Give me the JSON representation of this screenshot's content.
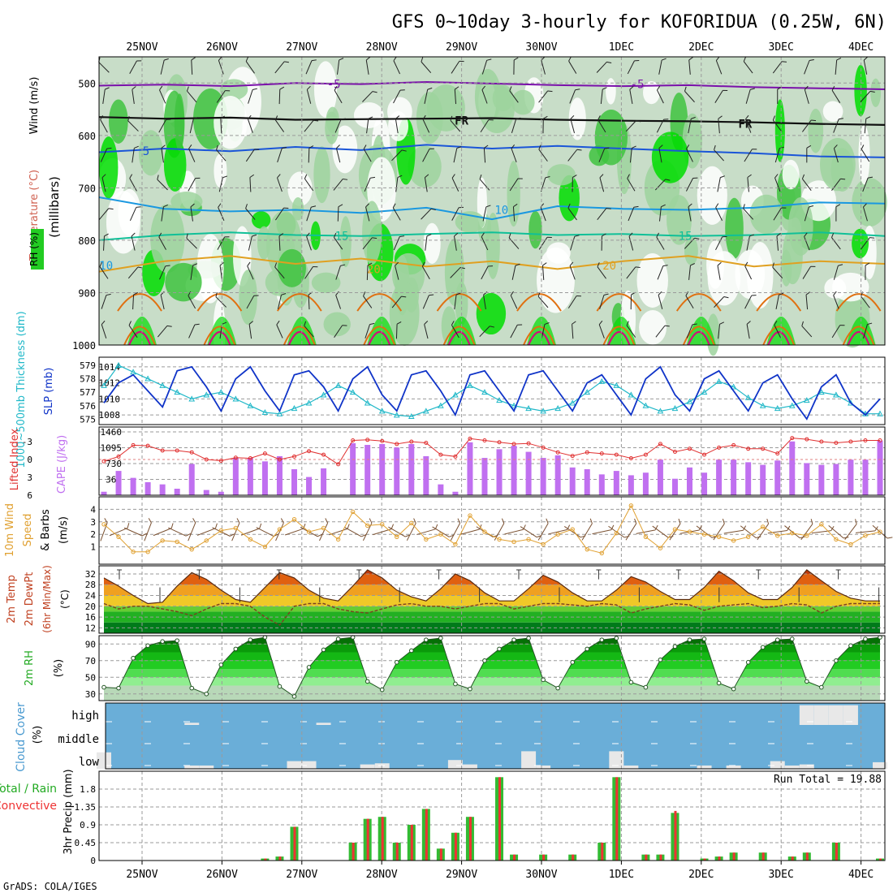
{
  "header": {
    "title": "GFS 0~10day 3-hourly for KOFORIDUA (0.25W, 6N)",
    "footer": "GrADS: COLA/IGES"
  },
  "dates": [
    "25NOV",
    "26NOV",
    "27NOV",
    "28NOV",
    "29NOV",
    "30NOV",
    "1DEC",
    "2DEC",
    "3DEC",
    "4DEC"
  ],
  "colors": {
    "rh_light": "#c8ddc8",
    "rh_mid": "#9ed39e",
    "rh_high": "#3fc33f",
    "rh_max": "#00dd00",
    "temp_m5": "#7a10aa",
    "temp_fr": "#111111",
    "temp_5": "#1a55d8",
    "temp_10": "#1a98e0",
    "temp_15": "#10c098",
    "temp_20": "#e0a020",
    "temp_25": "#e07010",
    "temp_30": "#d0107a",
    "slp": "#1034c8",
    "thick": "#20b8c8",
    "cape": "#c070f0",
    "lifted": "#e03030",
    "wind_speed": "#e0a030",
    "barb": "#7a5030",
    "cloud_bg": "#6aaed8",
    "cloud_fill": "#e8e8e8",
    "precip_total": "#33bb33",
    "precip_conv": "#ee3333",
    "grid": "#9a9a9a"
  },
  "chart_data": [
    {
      "id": "upper_air",
      "type": "heatmap",
      "ylabel_parts": [
        "RH (%)",
        "Temperature (°C)",
        "Wind (m/s)",
        "(millibars)"
      ],
      "y_ticks": [
        "500",
        "600",
        "700",
        "800",
        "900",
        "1000"
      ],
      "ylim": [
        1000,
        450
      ],
      "contours": [
        {
          "label": "-5",
          "pressure": [
            505,
            503,
            506,
            500,
            502,
            498,
            501,
            504,
            506,
            504,
            508,
            510,
            512
          ]
        },
        {
          "label": "FR",
          "pressure": [
            565,
            568,
            566,
            570,
            569,
            568,
            567,
            570,
            572,
            573,
            575,
            578,
            580
          ]
        },
        {
          "label": "5",
          "pressure": [
            632,
            625,
            630,
            622,
            628,
            618,
            625,
            620,
            625,
            630,
            634,
            640,
            642
          ]
        },
        {
          "label": "10",
          "pressure": [
            718,
            740,
            745,
            742,
            748,
            738,
            760,
            735,
            740,
            742,
            738,
            728,
            730
          ]
        },
        {
          "label": "15",
          "pressure": [
            800,
            790,
            785,
            790,
            792,
            788,
            785,
            790,
            788,
            792,
            790,
            785,
            792
          ]
        },
        {
          "label": "20",
          "pressure": [
            860,
            840,
            830,
            845,
            835,
            850,
            840,
            855,
            840,
            830,
            850,
            840,
            845
          ]
        }
      ],
      "contour_labels": [
        {
          "text": "-5",
          "day": 2.4,
          "pressure": 502
        },
        {
          "text": "-5",
          "day": 6.2,
          "pressure": 502
        },
        {
          "text": "FR",
          "day": 4.0,
          "pressure": 572
        },
        {
          "text": "FR",
          "day": 7.55,
          "pressure": 578
        },
        {
          "text": "5",
          "day": 0.05,
          "pressure": 630
        },
        {
          "text": "10",
          "day": 4.5,
          "pressure": 742
        },
        {
          "text": "15",
          "day": 2.5,
          "pressure": 792
        },
        {
          "text": "15",
          "day": 6.8,
          "pressure": 792
        },
        {
          "text": "20",
          "day": 2.9,
          "pressure": 855
        },
        {
          "text": "20",
          "day": 5.85,
          "pressure": 848
        },
        {
          "text": "10",
          "day": -0.45,
          "pressure": 848
        }
      ]
    },
    {
      "id": "slp_thickness",
      "type": "line",
      "ylabel_left": "1000~500mb Thickness (dm)",
      "ylabel_right": "SLP (mb)",
      "y_ticks_thickness": [
        "575",
        "576",
        "577",
        "578",
        "579"
      ],
      "y_ticks_slp": [
        "1008",
        "1010",
        "1012",
        "1014"
      ],
      "series": [
        {
          "name": "SLP (mb)",
          "axis": "slp",
          "values": [
            1009.5,
            1012,
            1013,
            1011,
            1009,
            1013.5,
            1014,
            1011.5,
            1008.5,
            1012.5,
            1014,
            1011,
            1008.5,
            1013,
            1013.5,
            1011.5,
            1008.5,
            1012.5,
            1014,
            1010.5,
            1008.5,
            1013,
            1013.5,
            1011,
            1008,
            1013,
            1013.5,
            1011,
            1008.5,
            1013,
            1013.5,
            1011,
            1008.5,
            1012,
            1013,
            1010.5,
            1008,
            1012.5,
            1014,
            1010.5,
            1008.5,
            1012.5,
            1013.5,
            1011,
            1008.5,
            1012,
            1013,
            1010,
            1007.5,
            1011.5,
            1013,
            1009.5,
            1008,
            1010
          ]
        },
        {
          "name": "1000~500mb Thickness (dm)",
          "axis": "thickness",
          "values": [
            577.5,
            579,
            578.5,
            578,
            577.5,
            577,
            576.5,
            576.8,
            577,
            576.5,
            576,
            575.5,
            575.4,
            575.8,
            576.2,
            576.8,
            577.5,
            577,
            576.2,
            575.6,
            575.3,
            575.2,
            575.6,
            576,
            576.8,
            577.5,
            577,
            576.4,
            576,
            575.8,
            575.6,
            575.8,
            576.2,
            577,
            577.8,
            577.5,
            576.8,
            576,
            575.6,
            575.8,
            576.3,
            577,
            577.8,
            577.4,
            576.6,
            576,
            575.8,
            576,
            576.4,
            577,
            576.8,
            576.2,
            575.4,
            575.4
          ]
        }
      ]
    },
    {
      "id": "cape_lifted",
      "type": "bar",
      "ylabel_left": "Lifted Index",
      "ylabel_right": "CAPE (J/kg)",
      "y_ticks_lifted": [
        "-3",
        "0",
        "3",
        "6"
      ],
      "y_ticks_cape": [
        "1460",
        "1095",
        "730",
        "365"
      ],
      "series": [
        {
          "name": "CAPE (J/kg)",
          "type": "bar",
          "values": [
            80,
            560,
            400,
            300,
            250,
            150,
            720,
            120,
            80,
            860,
            860,
            780,
            900,
            600,
            420,
            620,
            0,
            1200,
            1160,
            1180,
            1100,
            1180,
            900,
            250,
            80,
            1220,
            860,
            1060,
            1140,
            1000,
            860,
            920,
            640,
            600,
            480,
            560,
            460,
            520,
            820,
            380,
            640,
            520,
            820,
            820,
            760,
            700,
            800,
            1240,
            740,
            700,
            720,
            820,
            820,
            1260
          ]
        },
        {
          "name": "Lifted Index",
          "type": "line",
          "values": [
            0.3,
            -0.5,
            -2.4,
            -2.3,
            -1.5,
            -1.5,
            -1.2,
            0,
            0.2,
            -0.3,
            -0.2,
            -1.0,
            0,
            -0.5,
            -1.4,
            -0.8,
            0.8,
            -3.2,
            -3.3,
            -3.1,
            -2.6,
            -3.0,
            -2.8,
            -0.8,
            -0.5,
            -3.5,
            -3.2,
            -2.9,
            -2.6,
            -2.7,
            -2.0,
            -1.2,
            -0.6,
            -1.2,
            -1.0,
            -0.8,
            -0.2,
            -0.8,
            -2.6,
            -1.3,
            -1.8,
            -0.8,
            -2.0,
            -2.4,
            -1.8,
            -1.8,
            -1.0,
            -3.6,
            -3.4,
            -3.0,
            -2.8,
            -3.0,
            -3.2,
            -3.2
          ]
        }
      ]
    },
    {
      "id": "wind_10m",
      "type": "line",
      "ylabel": "10m Wind Speed & Barbs (m/s)",
      "y_ticks": [
        "1",
        "2",
        "3",
        "4"
      ],
      "series": [
        {
          "name": "10m Wind Speed (m/s)",
          "values": [
            2.8,
            1.8,
            0.6,
            0.6,
            1.5,
            1.4,
            0.8,
            1.5,
            2.3,
            2.5,
            1.6,
            1.0,
            2.4,
            3.2,
            2.2,
            2.5,
            1.6,
            3.8,
            2.7,
            2.8,
            1.8,
            2.9,
            1.6,
            2.0,
            1.2,
            3.5,
            2.2,
            1.6,
            1.4,
            1.6,
            1.2,
            2.0,
            2.4,
            0.8,
            0.5,
            2.1,
            4.3,
            1.8,
            0.9,
            2.4,
            2.2,
            2.0,
            1.8,
            1.5,
            1.8,
            2.6,
            1.9,
            2.1,
            1.9,
            2.8,
            1.6,
            1.2,
            1.9,
            2.2
          ]
        }
      ]
    },
    {
      "id": "temp_2m",
      "type": "area",
      "ylabel": "2m Temp 2m DewPt (6hr Min/Max) (°C)",
      "y_ticks": [
        "12",
        "16",
        "20",
        "24",
        "28",
        "32"
      ],
      "series": [
        {
          "name": "2m Temp",
          "values": [
            30.5,
            27.5,
            24,
            21,
            21.5,
            27.5,
            32.5,
            30,
            26,
            22.5,
            21.5,
            27,
            32.5,
            30.5,
            26,
            23,
            22,
            27.5,
            33.5,
            30.5,
            26,
            23.5,
            22,
            26.5,
            32,
            29.5,
            25,
            22,
            22,
            26.5,
            31.5,
            29,
            25,
            22,
            22,
            26,
            31,
            29,
            25.5,
            22.5,
            22.5,
            27,
            33,
            29.5,
            25,
            22.5,
            22.5,
            27,
            33.5,
            29.5,
            25.5,
            23,
            22,
            22
          ]
        },
        {
          "name": "2m DewPt",
          "values": [
            21,
            19,
            20,
            20,
            19,
            18,
            16.5,
            19,
            21,
            21,
            20,
            16,
            13,
            20,
            21,
            21,
            19,
            18,
            17.5,
            19,
            20.5,
            21,
            20,
            20,
            19,
            20,
            21,
            21,
            19,
            20,
            21,
            21,
            20.5,
            20,
            21,
            20.5,
            17.5,
            19,
            20,
            21,
            20.5,
            18.5,
            20,
            20.5,
            21,
            19.5,
            20,
            21,
            20.5,
            17.5,
            20,
            21,
            21,
            21
          ]
        }
      ]
    },
    {
      "id": "rh_2m",
      "type": "area",
      "ylabel": "2m RH (%)",
      "y_ticks": [
        "30",
        "50",
        "70",
        "90"
      ],
      "series": [
        {
          "name": "2m RH (%)",
          "values": [
            38,
            37,
            73,
            88,
            93,
            94,
            37,
            30,
            65,
            84,
            95,
            98,
            39,
            27,
            62,
            83,
            96,
            98,
            45,
            35,
            68,
            82,
            95,
            97,
            42,
            36,
            70,
            84,
            95,
            97,
            47,
            37,
            68,
            84,
            95,
            97,
            44,
            38,
            71,
            87,
            95,
            96,
            43,
            36,
            68,
            86,
            95,
            96,
            45,
            38,
            70,
            88,
            96,
            98
          ]
        }
      ]
    },
    {
      "id": "cloud_cover",
      "type": "area",
      "ylabel": "Cloud Cover (%)",
      "layers": [
        "high",
        "middle",
        "low"
      ],
      "series": [
        {
          "name": "high",
          "values": [
            0,
            0,
            0,
            0,
            0,
            0,
            10,
            0,
            0,
            0,
            0,
            0,
            0,
            0,
            0,
            10,
            0,
            0,
            0,
            0,
            0,
            0,
            0,
            0,
            0,
            0,
            0,
            0,
            0,
            0,
            0,
            0,
            0,
            0,
            0,
            0,
            0,
            0,
            0,
            0,
            0,
            0,
            0,
            0,
            0,
            0,
            0,
            0,
            90,
            90,
            90,
            90,
            0,
            0
          ]
        },
        {
          "name": "middle",
          "values": [
            0,
            0,
            0,
            0,
            0,
            0,
            0,
            0,
            0,
            0,
            0,
            0,
            0,
            0,
            0,
            0,
            0,
            0,
            0,
            0,
            0,
            0,
            0,
            0,
            0,
            0,
            0,
            0,
            0,
            0,
            0,
            0,
            0,
            0,
            0,
            0,
            0,
            0,
            0,
            0,
            0,
            0,
            0,
            0,
            0,
            0,
            0,
            0,
            0,
            0,
            0,
            0,
            0,
            0
          ]
        },
        {
          "name": "low",
          "values": [
            75,
            0,
            0,
            0,
            0,
            0,
            15,
            15,
            0,
            0,
            0,
            0,
            0,
            35,
            35,
            0,
            0,
            0,
            20,
            25,
            0,
            0,
            0,
            0,
            40,
            20,
            0,
            0,
            0,
            80,
            15,
            0,
            0,
            0,
            0,
            80,
            15,
            0,
            0,
            0,
            0,
            15,
            0,
            15,
            0,
            0,
            35,
            15,
            20,
            0,
            0,
            0,
            0,
            30
          ]
        }
      ]
    },
    {
      "id": "precip",
      "type": "bar",
      "ylabel": "3hr Precip (mm)",
      "legend": [
        "Total / Rain",
        "Convective"
      ],
      "annotation": "Run Total = 19.88",
      "y_ticks": [
        "0",
        "0.45",
        "0.9",
        "1.35",
        "1.8"
      ],
      "series": [
        {
          "name": "Total / Rain",
          "values": [
            0,
            0,
            0,
            0,
            0,
            0,
            0,
            0,
            0,
            0,
            0,
            0.05,
            0.1,
            0.85,
            0,
            0,
            0,
            0.45,
            1.05,
            1.1,
            0.45,
            0.9,
            1.3,
            0.3,
            0.7,
            1.1,
            0,
            2.1,
            0.15,
            0,
            0.15,
            0,
            0.15,
            0,
            0.45,
            2.1,
            0,
            0.15,
            0.15,
            1.2,
            0,
            0.05,
            0.1,
            0.2,
            0,
            0.2,
            0,
            0.1,
            0.2,
            0,
            0.45,
            0,
            0,
            0.05
          ]
        },
        {
          "name": "Convective",
          "values": [
            0,
            0,
            0,
            0,
            0,
            0,
            0,
            0,
            0,
            0,
            0,
            0.05,
            0.1,
            0.85,
            0,
            0,
            0,
            0.45,
            1.05,
            1.1,
            0.45,
            0.9,
            1.3,
            0.3,
            0.7,
            1.1,
            0,
            2.1,
            0.15,
            0,
            0.15,
            0,
            0.15,
            0,
            0.45,
            2.1,
            0,
            0.15,
            0.15,
            1.25,
            0,
            0.05,
            0.1,
            0.2,
            0,
            0.2,
            0,
            0.1,
            0.2,
            0,
            0.45,
            0,
            0,
            0.05
          ]
        }
      ]
    }
  ]
}
